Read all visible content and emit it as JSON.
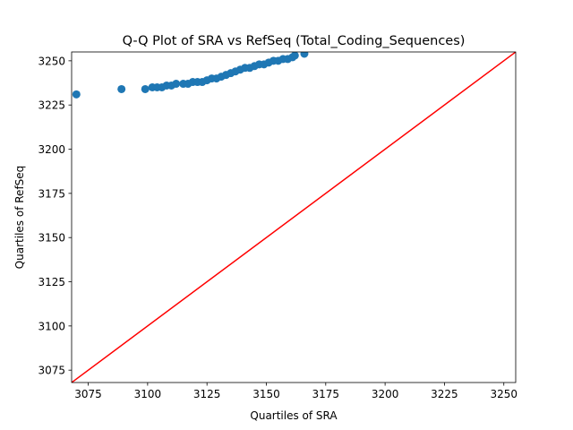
{
  "chart_data": {
    "type": "scatter",
    "title": "Q-Q Plot of SRA vs RefSeq (Total_Coding_Sequences)",
    "xlabel": "Quartiles of SRA",
    "ylabel": "Quartiles of RefSeq",
    "xlim": [
      3068,
      3255
    ],
    "ylim": [
      3068,
      3255
    ],
    "xticks": [
      3075,
      3100,
      3125,
      3150,
      3175,
      3200,
      3225,
      3250
    ],
    "yticks": [
      3075,
      3100,
      3125,
      3150,
      3175,
      3200,
      3225,
      3250
    ],
    "grid": false,
    "points_color": "#1f77b4",
    "reference_line": {
      "from": [
        3068,
        3068
      ],
      "to": [
        3255,
        3255
      ],
      "color": "#ff0000"
    },
    "points": [
      {
        "x": 3070,
        "y": 3231
      },
      {
        "x": 3089,
        "y": 3234
      },
      {
        "x": 3099,
        "y": 3234
      },
      {
        "x": 3102,
        "y": 3235
      },
      {
        "x": 3104,
        "y": 3235
      },
      {
        "x": 3106,
        "y": 3235
      },
      {
        "x": 3108,
        "y": 3236
      },
      {
        "x": 3110,
        "y": 3236
      },
      {
        "x": 3112,
        "y": 3237
      },
      {
        "x": 3115,
        "y": 3237
      },
      {
        "x": 3117,
        "y": 3237
      },
      {
        "x": 3119,
        "y": 3238
      },
      {
        "x": 3121,
        "y": 3238
      },
      {
        "x": 3123,
        "y": 3238
      },
      {
        "x": 3125,
        "y": 3239
      },
      {
        "x": 3127,
        "y": 3240
      },
      {
        "x": 3129,
        "y": 3240
      },
      {
        "x": 3131,
        "y": 3241
      },
      {
        "x": 3133,
        "y": 3242
      },
      {
        "x": 3135,
        "y": 3243
      },
      {
        "x": 3137,
        "y": 3244
      },
      {
        "x": 3139,
        "y": 3245
      },
      {
        "x": 3141,
        "y": 3246
      },
      {
        "x": 3143,
        "y": 3246
      },
      {
        "x": 3145,
        "y": 3247
      },
      {
        "x": 3147,
        "y": 3248
      },
      {
        "x": 3149,
        "y": 3248
      },
      {
        "x": 3151,
        "y": 3249
      },
      {
        "x": 3153,
        "y": 3250
      },
      {
        "x": 3155,
        "y": 3250
      },
      {
        "x": 3157,
        "y": 3251
      },
      {
        "x": 3159,
        "y": 3251
      },
      {
        "x": 3161,
        "y": 3252
      },
      {
        "x": 3162,
        "y": 3253
      },
      {
        "x": 3166,
        "y": 3254
      }
    ]
  }
}
